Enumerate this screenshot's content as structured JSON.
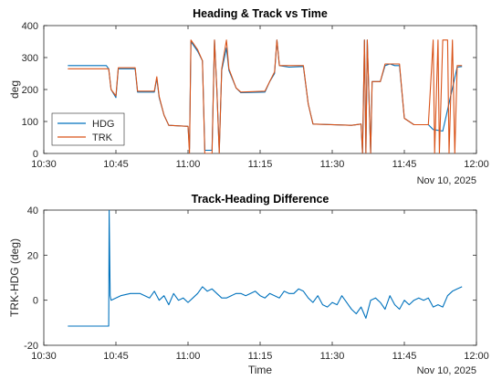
{
  "chart_data": [
    {
      "type": "line",
      "title": "Heading & Track vs Time",
      "ylabel": "deg",
      "xlabel": "",
      "date_label": "Nov 10, 2025",
      "xlim": [
        "10:30",
        "12:00"
      ],
      "ylim": [
        0,
        400
      ],
      "x_ticks": [
        "10:30",
        "10:45",
        "11:00",
        "11:15",
        "11:30",
        "11:45",
        "12:00"
      ],
      "y_ticks": [
        0,
        100,
        200,
        300,
        400
      ],
      "legend": {
        "placement": "bottom-left",
        "entries": [
          "HDG",
          "TRK"
        ]
      },
      "series": [
        {
          "name": "HDG",
          "color": "#0072BD",
          "points": [
            [
              "10:35",
              275
            ],
            [
              "10:43",
              275
            ],
            [
              "10:43.5",
              265
            ],
            [
              "10:44",
              200
            ],
            [
              "10:45",
              175
            ],
            [
              "10:45.5",
              265
            ],
            [
              "10:49",
              265
            ],
            [
              "10:49.5",
              192
            ],
            [
              "10:53",
              192
            ],
            [
              "10:53.5",
              235
            ],
            [
              "10:54",
              175
            ],
            [
              "10:55",
              120
            ],
            [
              "10:56",
              88
            ],
            [
              "11:00",
              85
            ],
            [
              "11:00.3",
              15
            ],
            [
              "11:00.6",
              350
            ],
            [
              "11:02",
              320
            ],
            [
              "11:03",
              290
            ],
            [
              "11:03.5",
              10
            ],
            [
              "11:05",
              10
            ],
            [
              "11:05.5",
              355
            ],
            [
              "11:06",
              200
            ],
            [
              "11:06.5",
              5
            ],
            [
              "11:07",
              260
            ],
            [
              "11:08",
              330
            ],
            [
              "11:08.5",
              260
            ],
            [
              "11:10",
              205
            ],
            [
              "11:11",
              190
            ],
            [
              "11:16",
              192
            ],
            [
              "11:17",
              225
            ],
            [
              "11:18",
              250
            ],
            [
              "11:18.5",
              355
            ],
            [
              "11:19",
              275
            ],
            [
              "11:21",
              270
            ],
            [
              "11:24",
              272
            ],
            [
              "11:25",
              155
            ],
            [
              "11:26",
              92
            ],
            [
              "11:34",
              88
            ],
            [
              "11:36",
              92
            ],
            [
              "11:36.3",
              0
            ],
            [
              "11:36.7",
              355
            ],
            [
              "11:37",
              0
            ],
            [
              "11:37.3",
              355
            ],
            [
              "11:38",
              0
            ],
            [
              "11:38.3",
              225
            ],
            [
              "11:40",
              225
            ],
            [
              "11:41",
              275
            ],
            [
              "11:42",
              280
            ],
            [
              "11:43",
              275
            ],
            [
              "11:44",
              275
            ],
            [
              "11:45",
              110
            ],
            [
              "11:47",
              90
            ],
            [
              "11:50",
              90
            ],
            [
              "11:51",
              75
            ],
            [
              "11:53",
              70
            ],
            [
              "11:56",
              270
            ],
            [
              "11:57",
              272
            ]
          ]
        },
        {
          "name": "TRK",
          "color": "#D95319",
          "points": [
            [
              "10:35",
              265
            ],
            [
              "10:43",
              265
            ],
            [
              "10:43.5",
              265
            ],
            [
              "10:44",
              200
            ],
            [
              "10:45",
              180
            ],
            [
              "10:45.5",
              268
            ],
            [
              "10:49",
              268
            ],
            [
              "10:49.5",
              195
            ],
            [
              "10:53",
              195
            ],
            [
              "10:53.5",
              240
            ],
            [
              "10:54",
              178
            ],
            [
              "10:55",
              120
            ],
            [
              "10:56",
              88
            ],
            [
              "11:00",
              85
            ],
            [
              "11:00.3",
              0
            ],
            [
              "11:00.6",
              355
            ],
            [
              "11:02",
              325
            ],
            [
              "11:03",
              290
            ],
            [
              "11:03.5",
              0
            ],
            [
              "11:05",
              0
            ],
            [
              "11:05.5",
              355
            ],
            [
              "11:06",
              200
            ],
            [
              "11:06.5",
              0
            ],
            [
              "11:07",
              265
            ],
            [
              "11:08",
              355
            ],
            [
              "11:08.5",
              265
            ],
            [
              "11:10",
              205
            ],
            [
              "11:11",
              192
            ],
            [
              "11:16",
              195
            ],
            [
              "11:17",
              225
            ],
            [
              "11:18",
              255
            ],
            [
              "11:18.5",
              355
            ],
            [
              "11:19",
              275
            ],
            [
              "11:21",
              275
            ],
            [
              "11:24",
              275
            ],
            [
              "11:25",
              155
            ],
            [
              "11:26",
              92
            ],
            [
              "11:34",
              88
            ],
            [
              "11:36",
              92
            ],
            [
              "11:36.3",
              0
            ],
            [
              "11:36.7",
              355
            ],
            [
              "11:37",
              0
            ],
            [
              "11:37.3",
              355
            ],
            [
              "11:38",
              0
            ],
            [
              "11:38.3",
              225
            ],
            [
              "11:40",
              225
            ],
            [
              "11:41",
              280
            ],
            [
              "11:42",
              280
            ],
            [
              "11:43",
              280
            ],
            [
              "11:44",
              280
            ],
            [
              "11:45",
              110
            ],
            [
              "11:47",
              90
            ],
            [
              "11:50",
              90
            ],
            [
              "11:51",
              355
            ],
            [
              "11:51.3",
              0
            ],
            [
              "11:52",
              355
            ],
            [
              "11:52.3",
              0
            ],
            [
              "11:53",
              355
            ],
            [
              "11:54",
              355
            ],
            [
              "11:54.3",
              0
            ],
            [
              "11:55",
              355
            ],
            [
              "11:55.5",
              0
            ],
            [
              "11:56",
              275
            ],
            [
              "11:57",
              275
            ]
          ]
        }
      ]
    },
    {
      "type": "line",
      "title": "Track-Heading Difference",
      "ylabel": "TRK-HDG (deg)",
      "xlabel": "Time",
      "date_label": "Nov 10, 2025",
      "xlim": [
        "10:30",
        "12:00"
      ],
      "ylim": [
        -20,
        40
      ],
      "x_ticks": [
        "10:30",
        "10:45",
        "11:00",
        "11:15",
        "11:30",
        "11:45",
        "12:00"
      ],
      "y_ticks": [
        -20,
        0,
        20,
        40
      ],
      "series": [
        {
          "color": "#0072BD",
          "points": [
            [
              "10:35",
              -11.5
            ],
            [
              "10:43.5",
              -11.5
            ],
            [
              "10:43.6",
              40
            ],
            [
              "10:43.8",
              2
            ],
            [
              "10:44",
              0
            ],
            [
              "10:45",
              1
            ],
            [
              "10:46",
              2
            ],
            [
              "10:48",
              3
            ],
            [
              "10:50",
              3
            ],
            [
              "10:52",
              1
            ],
            [
              "10:53",
              4
            ],
            [
              "10:54",
              0
            ],
            [
              "10:55",
              2
            ],
            [
              "10:56",
              -2
            ],
            [
              "10:57",
              3
            ],
            [
              "10:58",
              0
            ],
            [
              "10:59",
              1
            ],
            [
              "11:00",
              -1
            ],
            [
              "11:01",
              1
            ],
            [
              "11:02",
              3
            ],
            [
              "11:03",
              6
            ],
            [
              "11:04",
              4
            ],
            [
              "11:05",
              5
            ],
            [
              "11:06",
              3
            ],
            [
              "11:07",
              1
            ],
            [
              "11:08",
              1
            ],
            [
              "11:09",
              2
            ],
            [
              "11:10",
              3
            ],
            [
              "11:11",
              3
            ],
            [
              "11:12",
              2
            ],
            [
              "11:13",
              3
            ],
            [
              "11:14",
              4
            ],
            [
              "11:15",
              2
            ],
            [
              "11:16",
              1
            ],
            [
              "11:17",
              3
            ],
            [
              "11:18",
              2
            ],
            [
              "11:19",
              1
            ],
            [
              "11:20",
              4
            ],
            [
              "11:21",
              3
            ],
            [
              "11:22",
              3
            ],
            [
              "11:23",
              5
            ],
            [
              "11:24",
              4
            ],
            [
              "11:25",
              1
            ],
            [
              "11:26",
              -1
            ],
            [
              "11:27",
              2
            ],
            [
              "11:28",
              -2
            ],
            [
              "11:29",
              -3
            ],
            [
              "11:30",
              -1
            ],
            [
              "11:31",
              -2
            ],
            [
              "11:32",
              2
            ],
            [
              "11:33",
              -1
            ],
            [
              "11:34",
              -4
            ],
            [
              "11:35",
              -6
            ],
            [
              "11:36",
              -3
            ],
            [
              "11:37",
              -8
            ],
            [
              "11:38",
              0
            ],
            [
              "11:39",
              1
            ],
            [
              "11:40",
              -1
            ],
            [
              "11:41",
              -4
            ],
            [
              "11:42",
              2
            ],
            [
              "11:43",
              -2
            ],
            [
              "11:44",
              -4
            ],
            [
              "11:45",
              0
            ],
            [
              "11:46",
              -2
            ],
            [
              "11:47",
              0
            ],
            [
              "11:48",
              1
            ],
            [
              "11:49",
              0
            ],
            [
              "11:50",
              1
            ],
            [
              "11:51",
              -3
            ],
            [
              "11:52",
              -2
            ],
            [
              "11:53",
              -3
            ],
            [
              "11:54",
              2
            ],
            [
              "11:55",
              4
            ],
            [
              "11:56",
              5
            ],
            [
              "11:57",
              6
            ]
          ]
        }
      ]
    }
  ]
}
